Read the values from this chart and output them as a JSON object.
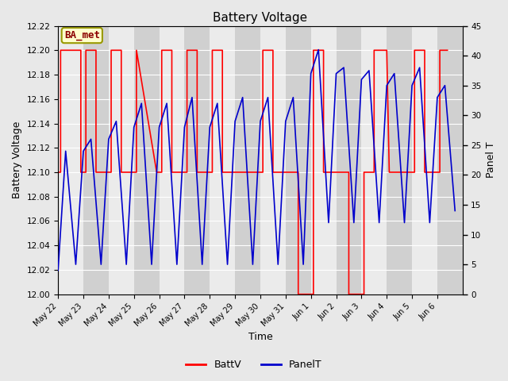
{
  "title": "Battery Voltage",
  "xlabel": "Time",
  "ylabel_left": "Battery Voltage",
  "ylabel_right": "Panel T",
  "annotation": "BA_met",
  "ylim_left": [
    12.0,
    12.22
  ],
  "ylim_right": [
    0,
    45
  ],
  "yticks_left": [
    12.0,
    12.02,
    12.04,
    12.06,
    12.08,
    12.1,
    12.12,
    12.14,
    12.16,
    12.18,
    12.2,
    12.22
  ],
  "yticks_right": [
    0,
    5,
    10,
    15,
    20,
    25,
    30,
    35,
    40,
    45
  ],
  "xtick_labels": [
    "May 22",
    "May 23",
    "May 24",
    "May 25",
    "May 26",
    "May 27",
    "May 28",
    "May 29",
    "May 30",
    "May 31",
    "Jun 1",
    "Jun 2",
    "Jun 3",
    "Jun 4",
    "Jun 5",
    "Jun 6"
  ],
  "background_color": "#e8e8e8",
  "plot_bg_color": "#e0e0e0",
  "band_light": "#ebebeb",
  "band_dark": "#d0d0d0",
  "grid_color": "#ffffff",
  "battv_color": "#ff0000",
  "panelt_color": "#0000cc",
  "legend_battv": "BattV",
  "legend_panelt": "PanelT",
  "battv_x": [
    0.0,
    0.1,
    0.1,
    0.4,
    0.9,
    0.9,
    1.0,
    1.1,
    1.1,
    1.4,
    1.5,
    1.5,
    1.9,
    2.1,
    2.1,
    2.4,
    2.5,
    2.5,
    2.9,
    3.1,
    3.1,
    3.9,
    4.1,
    4.1,
    4.4,
    4.5,
    4.5,
    4.9,
    5.1,
    5.1,
    5.4,
    5.5,
    5.5,
    5.9,
    6.1,
    6.1,
    6.4,
    6.5,
    6.5,
    6.9,
    7.1,
    7.1,
    7.9,
    8.1,
    8.1,
    8.4,
    8.5,
    8.5,
    8.9,
    9.1,
    9.1,
    9.4,
    9.5,
    9.5,
    9.9,
    10.0,
    10.1,
    10.1,
    10.4,
    10.5,
    10.5,
    10.9,
    11.0,
    11.1,
    11.1,
    11.4,
    11.5,
    11.5,
    11.9,
    12.0,
    12.1,
    12.1,
    12.4,
    12.5,
    12.5,
    12.9,
    13.0,
    13.1,
    13.1,
    13.4,
    13.5,
    13.5,
    13.9,
    14.0,
    14.1,
    14.1,
    14.4,
    14.5,
    14.5,
    14.9,
    15.0,
    15.1,
    15.1,
    15.4
  ],
  "battv_y": [
    12.1,
    12.1,
    12.2,
    12.2,
    12.2,
    12.1,
    12.1,
    12.1,
    12.2,
    12.2,
    12.2,
    12.1,
    12.1,
    12.1,
    12.2,
    12.2,
    12.2,
    12.1,
    12.1,
    12.1,
    12.2,
    12.1,
    12.1,
    12.2,
    12.2,
    12.2,
    12.1,
    12.1,
    12.1,
    12.2,
    12.2,
    12.2,
    12.1,
    12.1,
    12.1,
    12.2,
    12.2,
    12.2,
    12.1,
    12.1,
    12.1,
    12.1,
    12.1,
    12.1,
    12.2,
    12.2,
    12.2,
    12.1,
    12.1,
    12.1,
    12.1,
    12.1,
    12.1,
    12.0,
    12.0,
    12.0,
    12.0,
    12.2,
    12.2,
    12.2,
    12.1,
    12.1,
    12.1,
    12.1,
    12.1,
    12.1,
    12.1,
    12.0,
    12.0,
    12.0,
    12.0,
    12.1,
    12.1,
    12.1,
    12.2,
    12.2,
    12.2,
    12.1,
    12.1,
    12.1,
    12.1,
    12.1,
    12.1,
    12.1,
    12.1,
    12.2,
    12.2,
    12.2,
    12.1,
    12.1,
    12.1,
    12.1,
    12.2,
    12.2
  ],
  "panelt_x": [
    0.0,
    0.3,
    0.7,
    1.0,
    1.3,
    1.7,
    2.0,
    2.3,
    2.7,
    3.0,
    3.3,
    3.7,
    4.0,
    4.3,
    4.7,
    5.0,
    5.3,
    5.7,
    6.0,
    6.3,
    6.7,
    7.0,
    7.3,
    7.7,
    8.0,
    8.3,
    8.7,
    9.0,
    9.3,
    9.7,
    10.0,
    10.3,
    10.7,
    11.0,
    11.3,
    11.7,
    12.0,
    12.3,
    12.7,
    13.0,
    13.3,
    13.7,
    14.0,
    14.3,
    14.7,
    15.0,
    15.3,
    15.7
  ],
  "panelt_y": [
    4.0,
    24.0,
    5.0,
    24.0,
    26.0,
    5.0,
    26.0,
    29.0,
    5.0,
    28.0,
    32.0,
    5.0,
    28.0,
    32.0,
    5.0,
    28.0,
    33.0,
    5.0,
    28.0,
    32.0,
    5.0,
    29.0,
    33.0,
    5.0,
    29.0,
    33.0,
    5.0,
    29.0,
    33.0,
    5.0,
    37.0,
    41.0,
    12.0,
    37.0,
    38.0,
    12.0,
    36.0,
    37.5,
    12.0,
    35.0,
    37.0,
    12.0,
    35.0,
    38.0,
    12.0,
    33.0,
    35.0,
    14.0
  ]
}
